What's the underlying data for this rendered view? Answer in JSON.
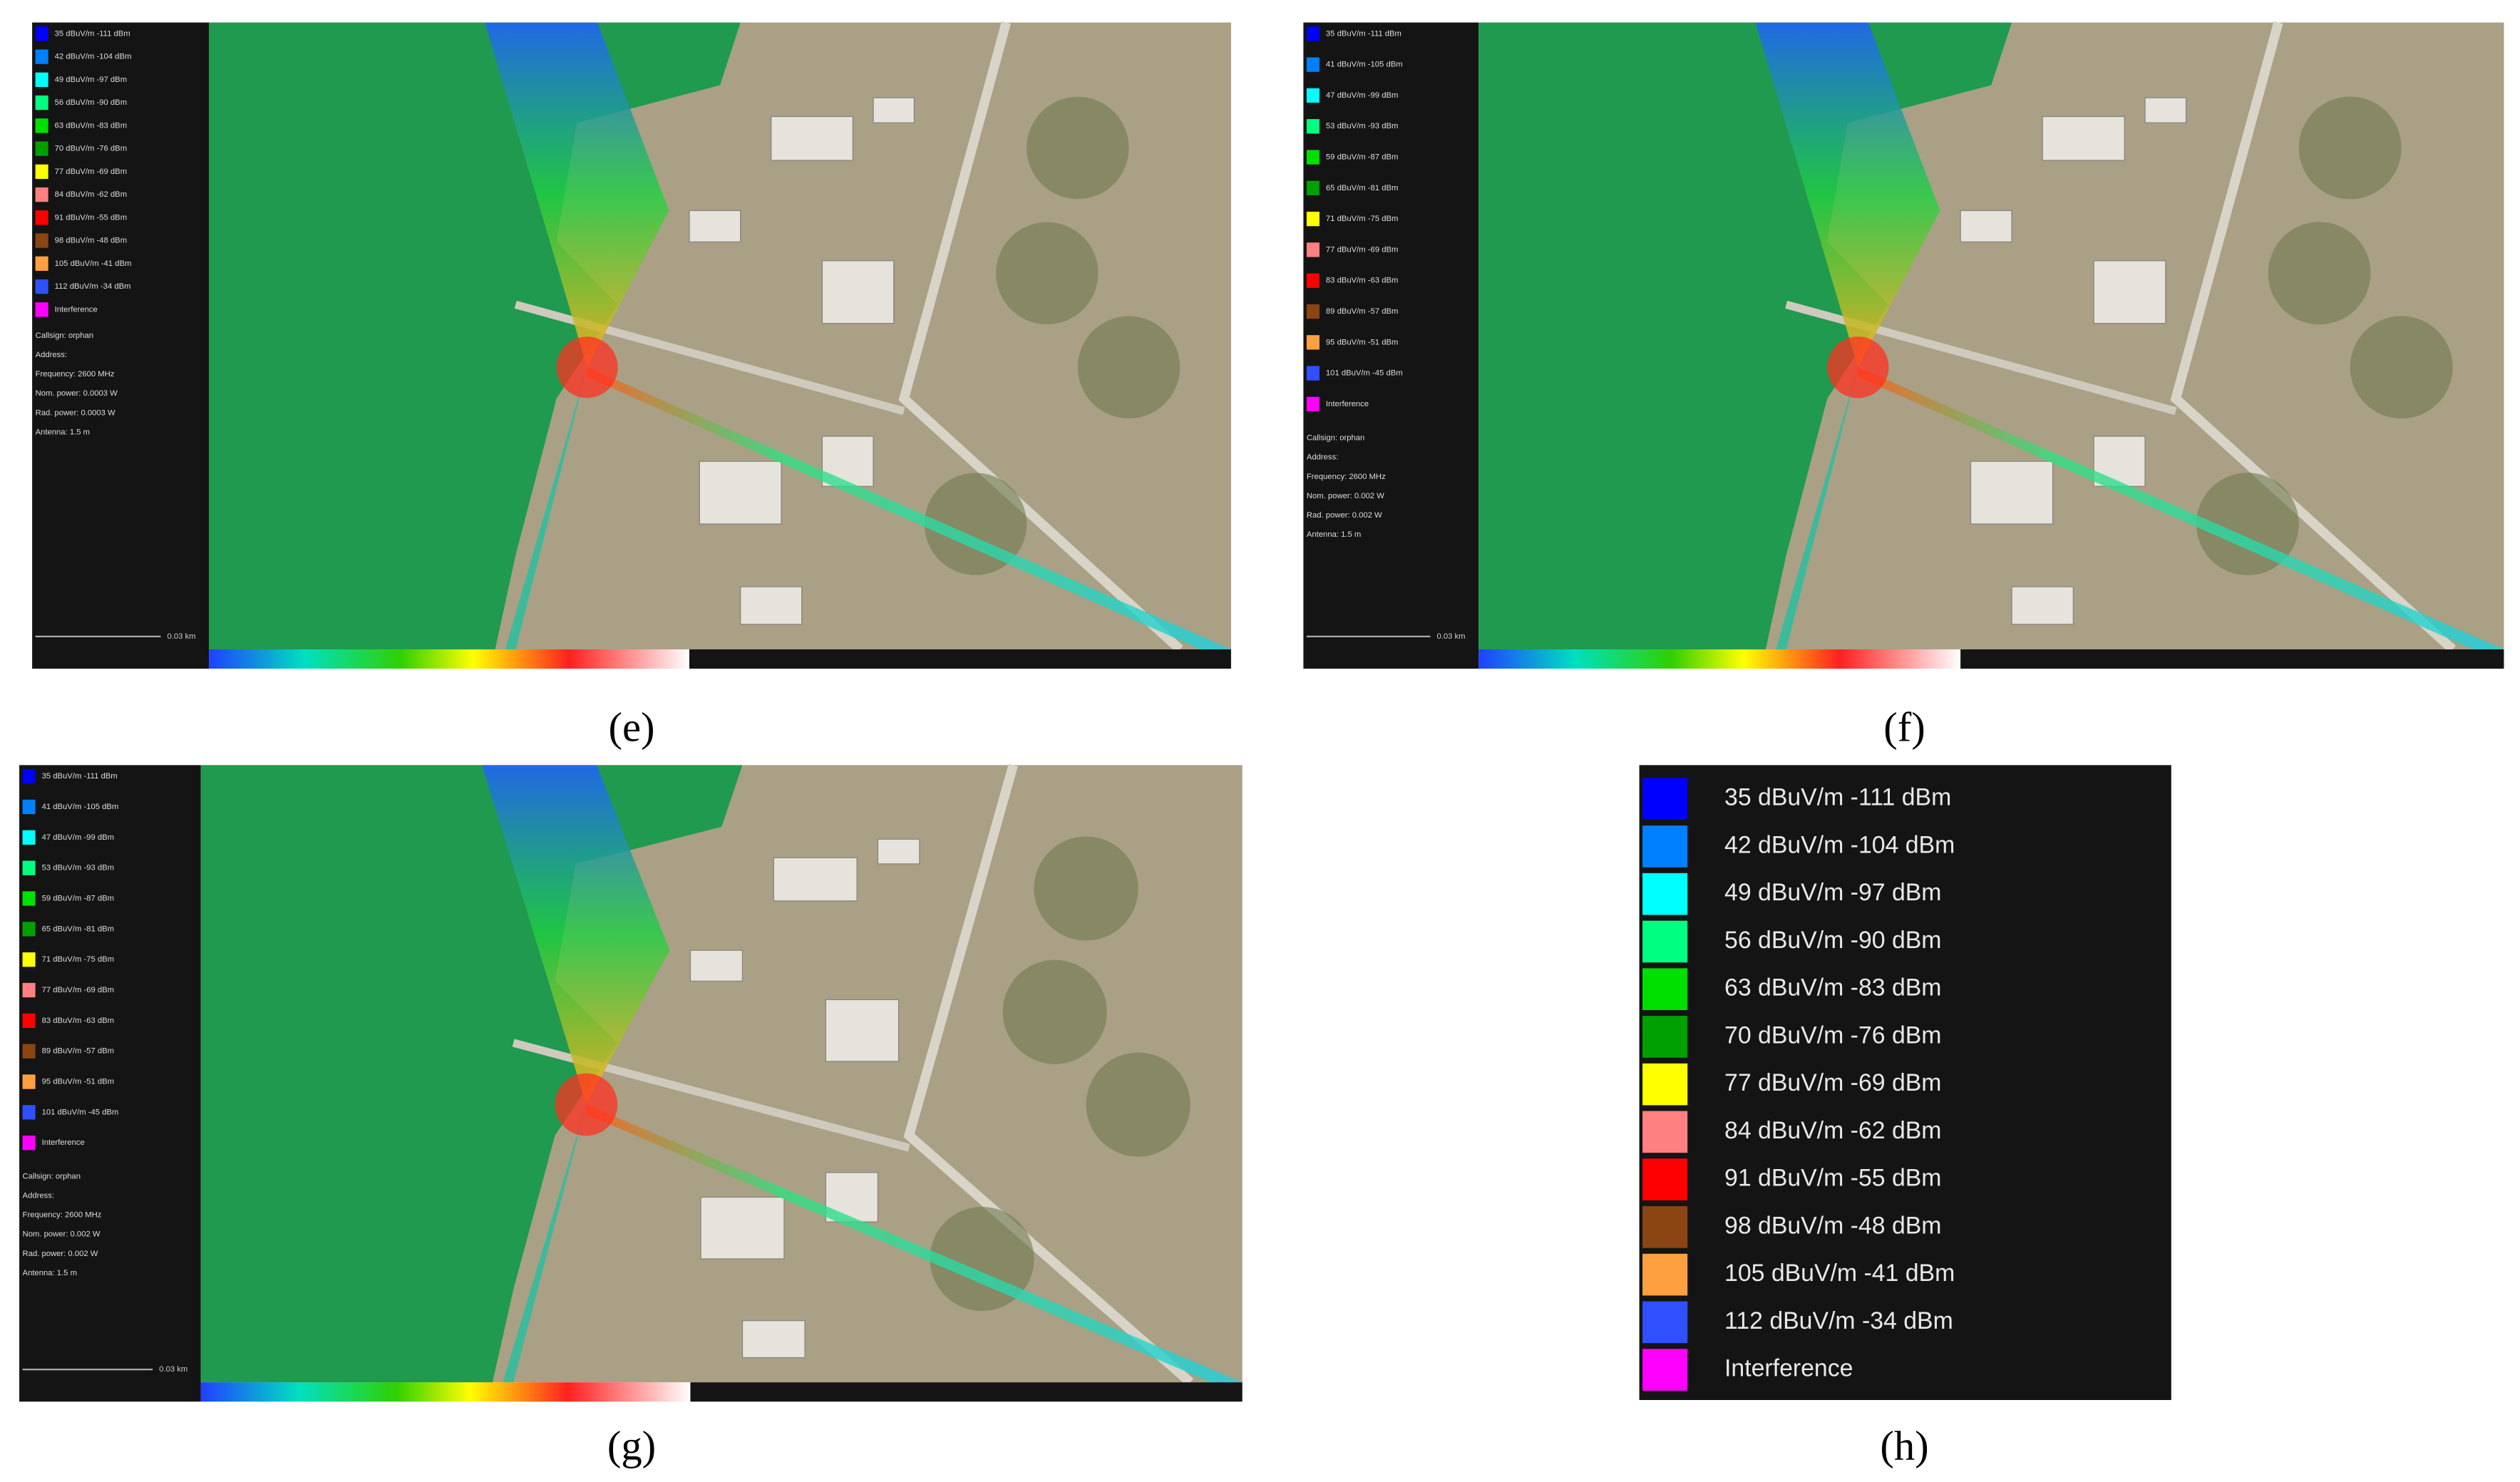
{
  "legend_colors": [
    "#0000ff",
    "#0080ff",
    "#00ffff",
    "#00ff80",
    "#00e000",
    "#00a000",
    "#ffff00",
    "#ff8080",
    "#ff0000",
    "#8b4513",
    "#ffa040",
    "#3050ff",
    "#ff00ff"
  ],
  "panels": [
    {
      "label": "(e)",
      "legend": [
        "35 dBuV/m -111 dBm",
        "42 dBuV/m -104 dBm",
        "49 dBuV/m -97 dBm",
        "56 dBuV/m -90 dBm",
        "63 dBuV/m -83 dBm",
        "70 dBuV/m -76 dBm",
        "77 dBuV/m -69 dBm",
        "84 dBuV/m -62 dBm",
        "91 dBuV/m -55 dBm",
        "98 dBuV/m -48 dBm",
        "105 dBuV/m -41 dBm",
        "112 dBuV/m -34 dBm",
        "Interference"
      ],
      "info": [
        "Callsign: orphan",
        "Address:",
        "Frequency: 2600 MHz",
        "Nom. power: 0.0003 W",
        "Rad. power: 0.0003 W",
        "Antenna: 1.5 m"
      ],
      "scale": "0.03 km"
    },
    {
      "label": "(f)",
      "legend": [
        "35 dBuV/m -111 dBm",
        "41 dBuV/m -105 dBm",
        "47 dBuV/m -99 dBm",
        "53 dBuV/m -93 dBm",
        "59 dBuV/m -87 dBm",
        "65 dBuV/m -81 dBm",
        "71 dBuV/m -75 dBm",
        "77 dBuV/m -69 dBm",
        "83 dBuV/m -63 dBm",
        "89 dBuV/m -57 dBm",
        "95 dBuV/m -51 dBm",
        "101 dBuV/m -45 dBm",
        "Interference"
      ],
      "info": [
        "Callsign: orphan",
        "Address:",
        "Frequency: 2600 MHz",
        "Nom. power: 0.002 W",
        "Rad. power: 0.002 W",
        "Antenna: 1.5 m"
      ],
      "scale": "0.03 km"
    },
    {
      "label": "(g)",
      "legend": [
        "35 dBuV/m -111 dBm",
        "41 dBuV/m -105 dBm",
        "47 dBuV/m -99 dBm",
        "53 dBuV/m -93 dBm",
        "59 dBuV/m -87 dBm",
        "65 dBuV/m -81 dBm",
        "71 dBuV/m -75 dBm",
        "77 dBuV/m -69 dBm",
        "83 dBuV/m -63 dBm",
        "89 dBuV/m -57 dBm",
        "95 dBuV/m -51 dBm",
        "101 dBuV/m -45 dBm",
        "Interference"
      ],
      "info": [
        "Callsign: orphan",
        "Address:",
        "Frequency: 2600 MHz",
        "Nom. power: 0.002 W",
        "Rad. power: 0.002 W",
        "Antenna: 1.5 m"
      ],
      "scale": "0.03 km"
    },
    {
      "label": "(h)",
      "legend": [
        "35 dBuV/m -111 dBm",
        "42 dBuV/m -104 dBm",
        "49 dBuV/m -97 dBm",
        "56 dBuV/m -90 dBm",
        "63 dBuV/m -83 dBm",
        "70 dBuV/m -76 dBm",
        "77 dBuV/m -69 dBm",
        "84 dBuV/m -62 dBm",
        "91 dBuV/m -55 dBm",
        "98 dBuV/m -48 dBm",
        "105 dBuV/m -41 dBm",
        "112 dBuV/m -34 dBm",
        "Interference"
      ]
    }
  ]
}
